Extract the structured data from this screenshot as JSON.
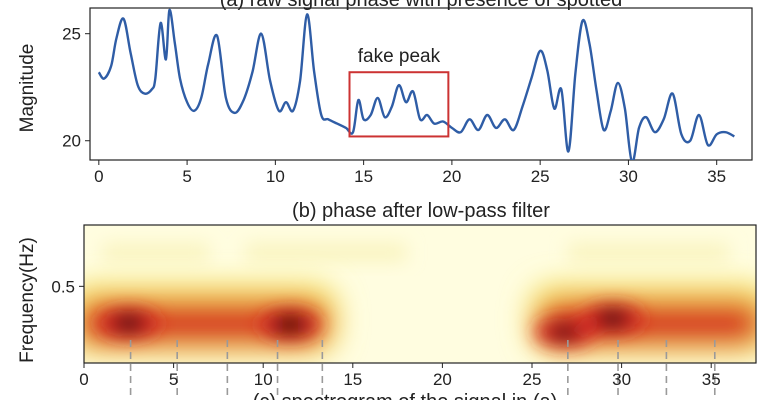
{
  "chart_data": [
    {
      "type": "line",
      "title": "(a) raw signal phase with presence of spotted",
      "xlabel": "",
      "ylabel": "Magnitude",
      "xlim": [
        -0.5,
        37
      ],
      "ylim": [
        19.1,
        26.2
      ],
      "xticks": [
        0,
        5,
        10,
        15,
        20,
        25,
        30,
        35
      ],
      "yticks": [
        20,
        25
      ],
      "x": [
        0,
        0.3,
        0.7,
        1.0,
        1.4,
        1.8,
        2.2,
        2.6,
        3.0,
        3.2,
        3.5,
        3.8,
        4.0,
        4.3,
        4.6,
        5.0,
        5.4,
        5.8,
        6.2,
        6.7,
        7.2,
        7.7,
        8.2,
        8.7,
        9.2,
        9.7,
        10.2,
        10.6,
        11.0,
        11.4,
        11.8,
        12.2,
        12.6,
        13.0,
        13.5,
        14.0,
        14.4,
        14.7,
        15.0,
        15.4,
        15.8,
        16.2,
        16.6,
        17.0,
        17.4,
        17.8,
        18.2,
        18.6,
        19.0,
        19.5,
        20.0,
        20.5,
        21.0,
        21.5,
        22.0,
        22.5,
        23.0,
        23.5,
        24.0,
        24.5,
        25.0,
        25.4,
        25.8,
        26.2,
        26.6,
        27.0,
        27.4,
        27.8,
        28.2,
        28.6,
        29.0,
        29.4,
        29.8,
        30.2,
        30.6,
        31.0,
        31.5,
        32.0,
        32.5,
        33.0,
        33.5,
        34.0,
        34.5,
        35.0,
        35.5,
        36.0
      ],
      "values": [
        23.2,
        22.9,
        23.5,
        24.8,
        25.7,
        24.1,
        22.6,
        22.2,
        22.4,
        22.9,
        25.5,
        23.8,
        26.1,
        24.6,
        22.9,
        21.8,
        21.4,
        22.0,
        23.6,
        24.9,
        22.0,
        21.3,
        21.9,
        23.2,
        25.0,
        22.8,
        21.4,
        21.8,
        21.4,
        22.8,
        25.9,
        23.2,
        21.2,
        21.0,
        20.8,
        20.6,
        20.4,
        21.9,
        21.0,
        21.2,
        22.0,
        21.1,
        21.6,
        22.6,
        21.8,
        22.3,
        21.0,
        21.2,
        20.8,
        20.9,
        20.6,
        20.4,
        21.0,
        20.5,
        21.2,
        20.6,
        21.0,
        20.5,
        21.6,
        22.9,
        24.2,
        23.3,
        21.5,
        22.4,
        19.5,
        23.2,
        25.6,
        24.5,
        22.3,
        20.5,
        21.4,
        22.7,
        21.5,
        19.0,
        20.6,
        21.1,
        20.4,
        21.0,
        22.2,
        20.3,
        20.0,
        21.2,
        19.8,
        20.3,
        20.4,
        20.2
      ],
      "annotation": {
        "text": "fake peak",
        "x_range": [
          14.2,
          19.8
        ],
        "y_range": [
          20.2,
          23.2
        ],
        "color": "#cc3333"
      },
      "line_color": "#2f5da6"
    },
    {
      "type": "heatmap",
      "title": "(b) phase after low-pass filter",
      "xlabel": "",
      "ylabel": "Frequency(Hz)",
      "xlim": [
        0,
        37.5
      ],
      "ylim": [
        0,
        0.9
      ],
      "xticks": [
        0,
        5,
        10,
        15,
        20,
        25,
        30,
        35
      ],
      "yticks": [
        0.5
      ],
      "colormap": [
        "#fffde0",
        "#f5e86a",
        "#f08a28",
        "#d42323",
        "#2a0806"
      ],
      "blobs": [
        {
          "x": 2.5,
          "y": 0.26,
          "intensity": 0.95
        },
        {
          "x": 11.5,
          "y": 0.25,
          "intensity": 1.0
        },
        {
          "x": 26.8,
          "y": 0.2,
          "intensity": 0.85
        },
        {
          "x": 29.5,
          "y": 0.29,
          "intensity": 0.95
        }
      ],
      "guide_lines_x": [
        2.6,
        5.2,
        8.0,
        10.8,
        13.3,
        27.0,
        29.8,
        32.5,
        35.2
      ],
      "guide_color": "#9a9a9a"
    }
  ],
  "caption_c": "(c) spectrogram of the signal in (a)"
}
